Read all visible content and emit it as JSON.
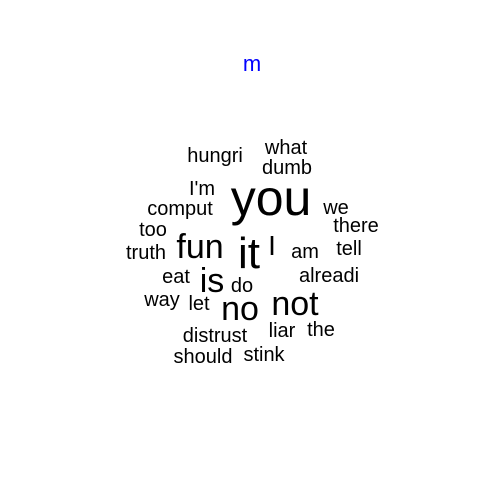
{
  "title": "m",
  "colors": {
    "title": "#0000ff",
    "words": "#000000",
    "background": "#ffffff"
  },
  "words": [
    {
      "text": "you",
      "weight": 5
    },
    {
      "text": "it",
      "weight": 4
    },
    {
      "text": "fun",
      "weight": 3
    },
    {
      "text": "not",
      "weight": 3
    },
    {
      "text": "no",
      "weight": 3
    },
    {
      "text": "is",
      "weight": 3
    },
    {
      "text": "I",
      "weight": 2
    },
    {
      "text": "hungri",
      "weight": 1
    },
    {
      "text": "what",
      "weight": 1
    },
    {
      "text": "dumb",
      "weight": 1
    },
    {
      "text": "I'm",
      "weight": 1
    },
    {
      "text": "comput",
      "weight": 1
    },
    {
      "text": "we",
      "weight": 1
    },
    {
      "text": "there",
      "weight": 1
    },
    {
      "text": "too",
      "weight": 1
    },
    {
      "text": "truth",
      "weight": 1
    },
    {
      "text": "am",
      "weight": 1
    },
    {
      "text": "tell",
      "weight": 1
    },
    {
      "text": "eat",
      "weight": 1
    },
    {
      "text": "do",
      "weight": 1
    },
    {
      "text": "alreadi",
      "weight": 1
    },
    {
      "text": "way",
      "weight": 1
    },
    {
      "text": "let",
      "weight": 1
    },
    {
      "text": "distrust",
      "weight": 1
    },
    {
      "text": "liar",
      "weight": 1
    },
    {
      "text": "the",
      "weight": 1
    },
    {
      "text": "should",
      "weight": 1
    },
    {
      "text": "stink",
      "weight": 1
    }
  ]
}
